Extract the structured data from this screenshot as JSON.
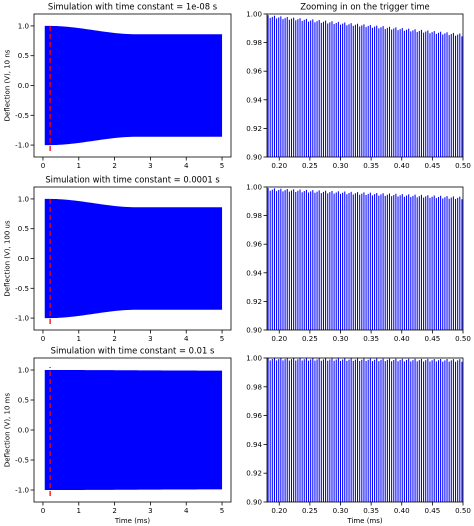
{
  "chart_data": [
    {
      "type": "line",
      "title": "Simulation with time constant = 1e-08 s",
      "xlabel": "",
      "ylabel": "Deflection (V), 10 ns",
      "xlim": [
        -0.25,
        5.25
      ],
      "ylim": [
        -1.2,
        1.2
      ],
      "xticks": [
        "0",
        "1",
        "2",
        "3",
        "4",
        "5"
      ],
      "yticks": [
        "-1.0",
        "-0.5",
        "0.0",
        "0.5",
        "1.0"
      ],
      "series": [
        {
          "color": "#0000ff",
          "x_start": 0.05,
          "x_end": 5.0,
          "envelope": {
            "peak_time": 0.2,
            "peak_amplitude": 1.0,
            "settle_time": 2.6,
            "settled_amplitude": 0.86
          }
        }
      ],
      "trigger_line": {
        "x": 0.2,
        "y": [
          -1.1,
          1.05
        ],
        "color": "#ff0000",
        "style": "dashed"
      }
    },
    {
      "type": "bar",
      "title": "Zooming in on the trigger time",
      "xlabel": "",
      "ylabel": "",
      "xlim": [
        0.18,
        0.5
      ],
      "ylim": [
        0.9,
        1.0
      ],
      "xticks": [
        "0.20",
        "0.25",
        "0.30",
        "0.35",
        "0.40",
        "0.45",
        "0.50"
      ],
      "yticks": [
        "0.90",
        "0.92",
        "0.94",
        "0.96",
        "0.98",
        "1.00"
      ],
      "series": [
        {
          "color": "#0000ff",
          "x_start": 0.18,
          "x_end": 0.5,
          "peak_count": 92,
          "peak_start": 0.998,
          "peak_end": 0.985
        }
      ]
    },
    {
      "type": "line",
      "title": "Simulation with time constant = 0.0001 s",
      "xlabel": "",
      "ylabel": "Deflection (V), 100 us",
      "xlim": [
        -0.25,
        5.25
      ],
      "ylim": [
        -1.2,
        1.2
      ],
      "xticks": [
        "0",
        "1",
        "2",
        "3",
        "4",
        "5"
      ],
      "yticks": [
        "-1.0",
        "-0.5",
        "0.0",
        "0.5",
        "1.0"
      ],
      "series": [
        {
          "color": "#0000ff",
          "x_start": 0.05,
          "x_end": 5.0,
          "envelope": {
            "peak_time": 0.2,
            "peak_amplitude": 1.0,
            "settle_time": 2.6,
            "settled_amplitude": 0.86
          }
        }
      ],
      "trigger_line": {
        "x": 0.2,
        "y": [
          -1.1,
          1.05
        ],
        "color": "#ff0000",
        "style": "dashed"
      }
    },
    {
      "type": "bar",
      "title": "",
      "xlabel": "",
      "ylabel": "",
      "xlim": [
        0.18,
        0.5
      ],
      "ylim": [
        0.9,
        1.0
      ],
      "xticks": [
        "0.20",
        "0.25",
        "0.30",
        "0.35",
        "0.40",
        "0.45",
        "0.50"
      ],
      "yticks": [
        "0.90",
        "0.92",
        "0.94",
        "0.96",
        "0.98",
        "1.00"
      ],
      "series": [
        {
          "color": "#0000ff",
          "x_start": 0.18,
          "x_end": 0.5,
          "peak_count": 92,
          "peak_start": 0.998,
          "peak_end": 0.992
        }
      ]
    },
    {
      "type": "line",
      "title": "Simulation with time constant = 0.01 s",
      "xlabel": "Time (ms)",
      "ylabel": "Deflection (V), 10 ms",
      "xlim": [
        -0.25,
        5.25
      ],
      "ylim": [
        -1.2,
        1.2
      ],
      "xticks": [
        "0",
        "1",
        "2",
        "3",
        "4",
        "5"
      ],
      "yticks": [
        "-1.0",
        "-0.5",
        "0.0",
        "0.5",
        "1.0"
      ],
      "series": [
        {
          "color": "#0000ff",
          "x_start": 0.05,
          "x_end": 5.0,
          "envelope": {
            "peak_time": 0.2,
            "peak_amplitude": 1.0,
            "settle_time": 5.0,
            "settled_amplitude": 0.99
          }
        }
      ],
      "trigger_line": {
        "x": 0.2,
        "y": [
          -1.1,
          1.05
        ],
        "color": "#ff0000",
        "style": "dashed"
      }
    },
    {
      "type": "bar",
      "title": "",
      "xlabel": "Time (ms)",
      "ylabel": "",
      "xlim": [
        0.18,
        0.5
      ],
      "ylim": [
        0.9,
        1.0
      ],
      "xticks": [
        "0.20",
        "0.25",
        "0.30",
        "0.35",
        "0.40",
        "0.45",
        "0.50"
      ],
      "yticks": [
        "0.90",
        "0.92",
        "0.94",
        "0.96",
        "0.98",
        "1.00"
      ],
      "series": [
        {
          "color": "#0000ff",
          "x_start": 0.18,
          "x_end": 0.5,
          "peak_count": 92,
          "peak_start": 0.999,
          "peak_end": 0.998
        }
      ]
    }
  ]
}
